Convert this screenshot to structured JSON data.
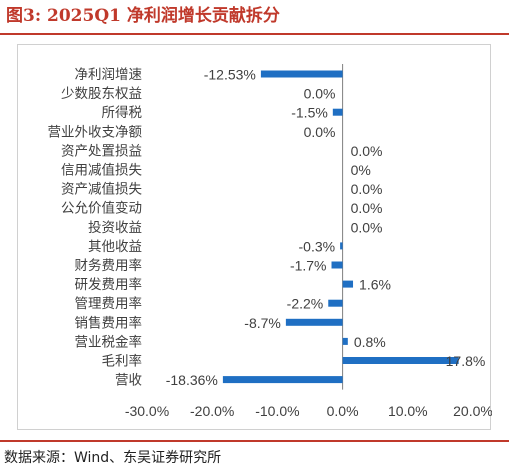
{
  "title": "图3:  2025Q1 净利润增长贡献拆分",
  "source": "数据来源：Wind、东吴证券研究所",
  "colors": {
    "title": "#c0392b",
    "bar": "#1f6fc3",
    "text": "#404040"
  },
  "chart_data": {
    "type": "bar",
    "orientation": "horizontal",
    "title": "",
    "xlabel": "",
    "ylabel": "",
    "xlim": [
      -30.0,
      20.0
    ],
    "x_ticks": [
      -30.0,
      -20.0,
      -10.0,
      0.0,
      10.0,
      20.0
    ],
    "x_tick_labels": [
      "-30.0%",
      "-20.0%",
      "-10.0%",
      "0.0%",
      "10.0%",
      "20.0%"
    ],
    "grid": false,
    "legend": "none",
    "categories": [
      "净利润增速",
      "少数股东权益",
      "所得税",
      "营业外收支净额",
      "资产处置损益",
      "信用减值损失",
      "资产减值损失",
      "公允价值变动",
      "投资收益",
      "其他收益",
      "财务费用率",
      "研发费用率",
      "管理费用率",
      "销售费用率",
      "营业税金率",
      "毛利率",
      "营收"
    ],
    "values": [
      -12.53,
      0.0,
      -1.5,
      0.0,
      0.0,
      0.0,
      0.0,
      0.0,
      0.0,
      -0.3,
      -1.7,
      1.6,
      -2.2,
      -8.7,
      0.8,
      17.8,
      -18.36
    ],
    "data_labels": [
      "-12.53%",
      "0.0%",
      "-1.5%",
      "0.0%",
      "0.0%",
      "0%",
      "0.0%",
      "0.0%",
      "0.0%",
      "-0.3%",
      "-1.7%",
      "1.6%",
      "-2.2%",
      "-8.7%",
      "0.8%",
      "17.8%",
      "-18.36%"
    ]
  }
}
